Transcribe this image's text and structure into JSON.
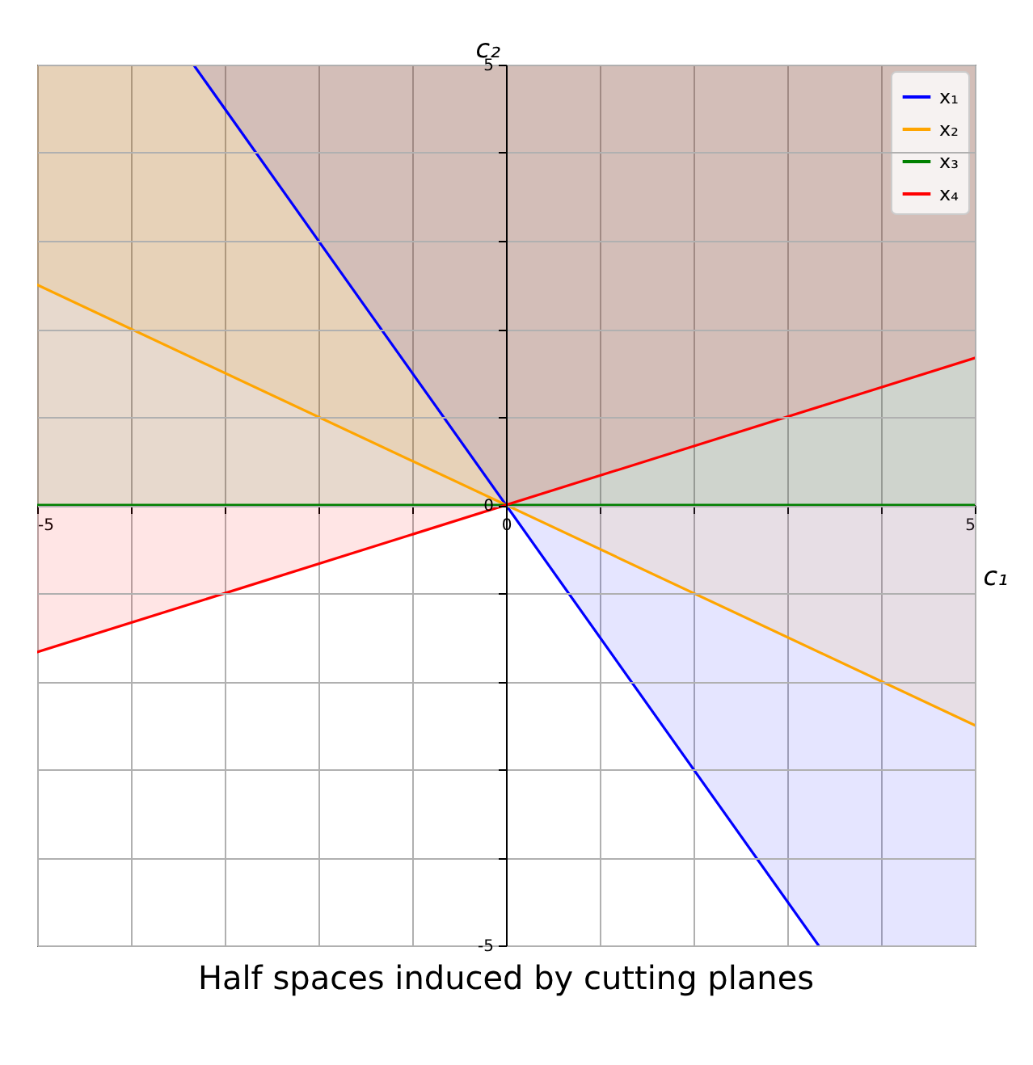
{
  "chart_data": {
    "type": "line",
    "title": "Half spaces induced by cutting planes",
    "xlabel": "c₁",
    "ylabel": "c₂",
    "xlim": [
      -5,
      5
    ],
    "ylim": [
      -5,
      5
    ],
    "xticks": [
      -5,
      {
        "value": -4,
        "label": null
      },
      {
        "value": -3,
        "label": null
      },
      {
        "value": -2,
        "label": null
      },
      {
        "value": -1,
        "label": null
      },
      0,
      {
        "value": 1,
        "label": null
      },
      {
        "value": 2,
        "label": null
      },
      {
        "value": 3,
        "label": null
      },
      {
        "value": 4,
        "label": null
      },
      5
    ],
    "yticks": [
      -5,
      {
        "value": -4,
        "label": null
      },
      {
        "value": -3,
        "label": null
      },
      {
        "value": -2,
        "label": null
      },
      {
        "value": -1,
        "label": null
      },
      0,
      {
        "value": 1,
        "label": null
      },
      {
        "value": 2,
        "label": null
      },
      {
        "value": 3,
        "label": null
      },
      {
        "value": 4,
        "label": null
      },
      5
    ],
    "grid": true,
    "legend": "top right",
    "series": [
      {
        "name": "x₁",
        "color": "#0000ff",
        "x": [
          -5,
          -3.333,
          3.333,
          5
        ],
        "values": [
          null,
          5,
          -5,
          null
        ],
        "lower": [
          5,
          5,
          -5,
          -5
        ],
        "upper": [
          5,
          5,
          5,
          5
        ]
      },
      {
        "name": "x₂",
        "color": "#ffa500",
        "x": [
          -5,
          5
        ],
        "values": [
          2.5,
          -2.5
        ],
        "lower": [
          2.5,
          -2.5
        ],
        "upper": [
          5,
          5
        ]
      },
      {
        "name": "x₃",
        "color": "#008000",
        "x": [
          -5,
          5
        ],
        "values": [
          0,
          0
        ],
        "lower": [
          0,
          0
        ],
        "upper": [
          5,
          5
        ]
      },
      {
        "name": "x₄",
        "color": "#ff0000",
        "x": [
          -5,
          5
        ],
        "values": [
          -1.67,
          1.67
        ],
        "lower": [
          -1.67,
          1.67
        ],
        "upper": [
          5,
          5
        ]
      }
    ]
  }
}
